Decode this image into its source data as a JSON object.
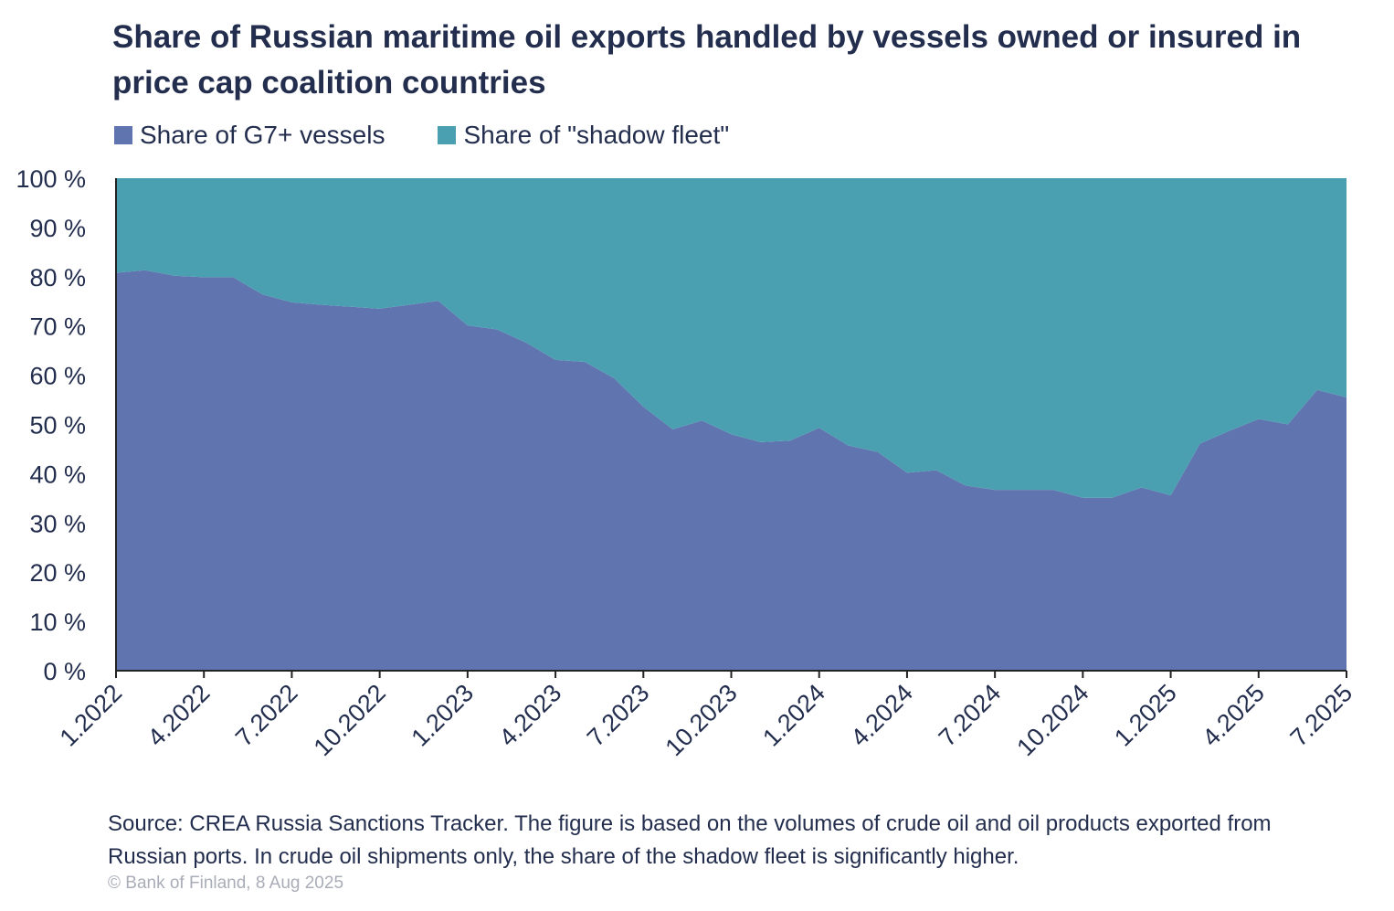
{
  "chart_data": {
    "type": "area",
    "title": "Share of Russian maritime oil exports handled by vessels owned or insured in price cap coalition countries",
    "legend": [
      {
        "name": "Share of G7+ vessels",
        "color": "#6075b0"
      },
      {
        "name": "Share of \"shadow fleet\"",
        "color": "#4aa0b0"
      }
    ],
    "legend_placement": "top-left",
    "stacked": true,
    "ylim": [
      0,
      100
    ],
    "y_ticks": [
      "0 %",
      "10 %",
      "20 %",
      "30 %",
      "40 %",
      "50 %",
      "60 %",
      "70 %",
      "80 %",
      "90 %",
      "100 %"
    ],
    "x_ticks": [
      "1.2022",
      "4.2022",
      "7.2022",
      "10.2022",
      "1.2023",
      "4.2023",
      "7.2023",
      "10.2023",
      "1.2024",
      "4.2024",
      "7.2024",
      "10.2024",
      "1.2025",
      "4.2025",
      "7.2025"
    ],
    "x": [
      "1.2022",
      "2.2022",
      "3.2022",
      "4.2022",
      "5.2022",
      "6.2022",
      "7.2022",
      "8.2022",
      "9.2022",
      "10.2022",
      "11.2022",
      "12.2022",
      "1.2023",
      "2.2023",
      "3.2023",
      "4.2023",
      "5.2023",
      "6.2023",
      "7.2023",
      "8.2023",
      "9.2023",
      "10.2023",
      "11.2023",
      "12.2023",
      "1.2024",
      "2.2024",
      "3.2024",
      "4.2024",
      "5.2024",
      "6.2024",
      "7.2024",
      "8.2024",
      "9.2024",
      "10.2024",
      "11.2024",
      "12.2024",
      "1.2025",
      "2.2025",
      "3.2025",
      "4.2025",
      "5.2025",
      "6.2025",
      "7.2025"
    ],
    "series": [
      {
        "name": "Share of G7+ vessels",
        "values": [
          80.8,
          81.3,
          80.2,
          79.9,
          79.9,
          76.4,
          74.8,
          74.3,
          73.9,
          73.5,
          74.3,
          75.1,
          70.1,
          69.3,
          66.6,
          63.1,
          62.7,
          59.4,
          53.6,
          49.0,
          50.8,
          48.0,
          46.4,
          46.7,
          49.3,
          45.7,
          44.4,
          40.2,
          40.7,
          37.6,
          36.7,
          36.7,
          36.7,
          35.1,
          35.1,
          37.2,
          35.6,
          46.1,
          48.7,
          51.1,
          50.0,
          57.0,
          55.5
        ]
      },
      {
        "name": "Share of \"shadow fleet\"",
        "values": [
          19.2,
          18.7,
          19.8,
          20.1,
          20.1,
          23.6,
          25.2,
          25.7,
          26.1,
          26.5,
          25.7,
          24.9,
          29.9,
          30.7,
          33.4,
          36.9,
          37.3,
          40.6,
          46.4,
          51.0,
          49.2,
          52.0,
          53.6,
          53.3,
          50.7,
          54.3,
          55.6,
          59.8,
          59.3,
          62.4,
          63.3,
          63.3,
          63.3,
          64.9,
          64.9,
          62.8,
          64.4,
          53.9,
          51.3,
          48.9,
          50.0,
          43.0,
          44.5
        ]
      }
    ],
    "grid": false
  },
  "source_note": "Source: CREA Russia Sanctions Tracker. The figure is based on the volumes of crude oil and oil products exported from Russian ports. In crude oil shipments only, the share of the shadow fleet is significantly higher.",
  "copyright": "© Bank of Finland, 8 Aug 2025"
}
